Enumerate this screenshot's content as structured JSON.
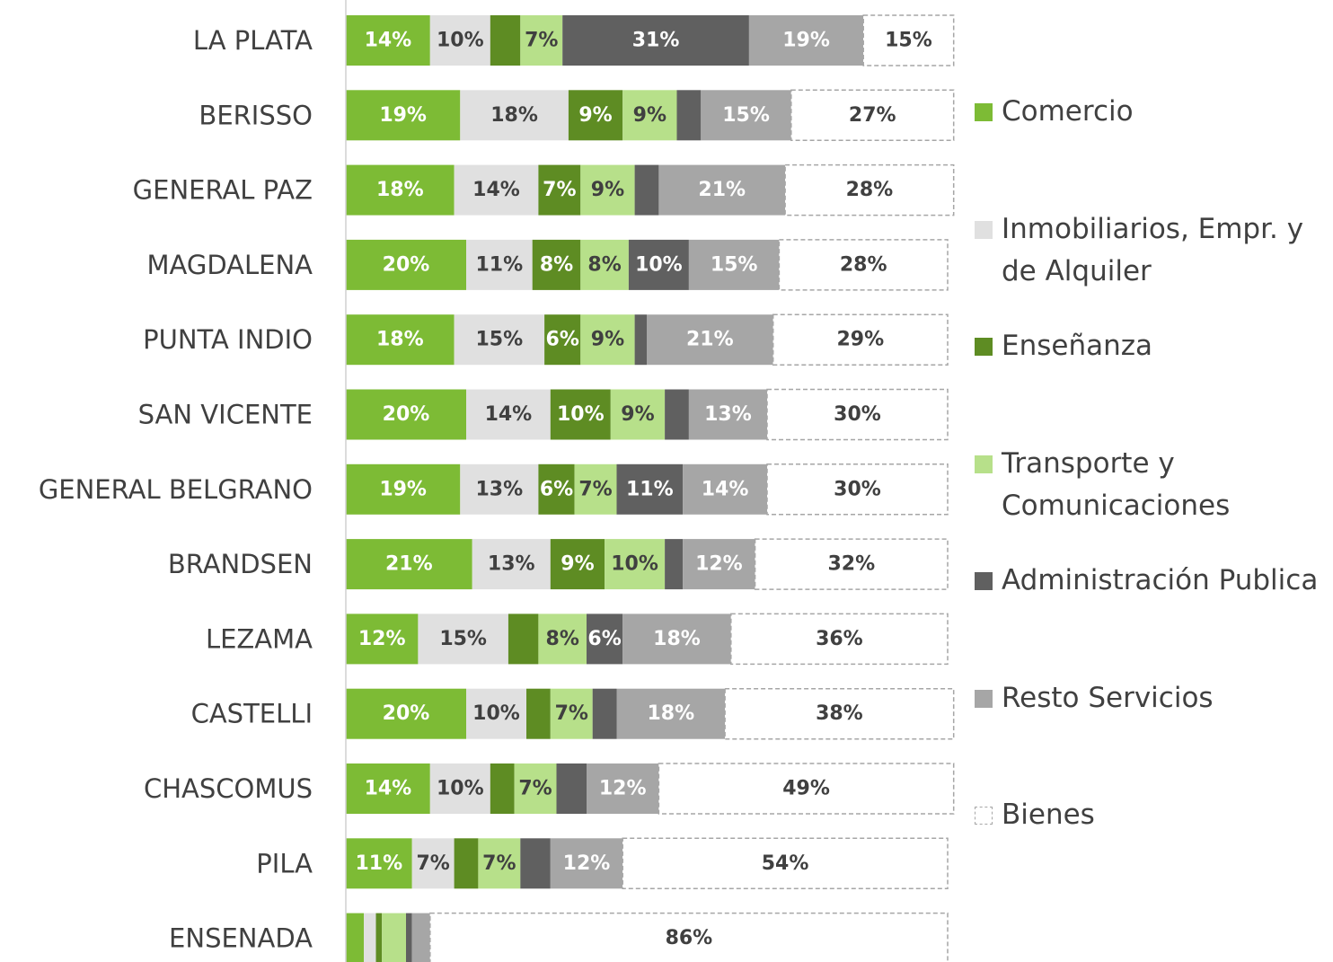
{
  "chart_data": {
    "type": "stacked_bar_horizontal_100",
    "categories": [
      "LA PLATA",
      "BERISSO",
      "GENERAL PAZ",
      "MAGDALENA",
      "PUNTA INDIO",
      "SAN VICENTE",
      "GENERAL BELGRANO",
      "BRANDSEN",
      "LEZAMA",
      "CASTELLI",
      "CHASCOMUS",
      "PILA",
      "ENSENADA"
    ],
    "xlim": [
      0,
      100
    ],
    "series": [
      {
        "name": "Comercio",
        "color": "#7dbb35",
        "label_color": "#ffffff",
        "values": [
          14,
          19,
          18,
          20,
          18,
          20,
          19,
          21,
          12,
          20,
          14,
          11,
          3
        ],
        "value_labels": [
          "14%",
          "19%",
          "18%",
          "20%",
          "18%",
          "20%",
          "19%",
          "21%",
          "12%",
          "20%",
          "14%",
          "11%",
          null
        ]
      },
      {
        "name": "Inmobiliarios, Empr. y de Alquiler",
        "color": "#e0e0e0",
        "label_color": "#404040",
        "values": [
          10,
          18,
          14,
          11,
          15,
          14,
          13,
          13,
          15,
          10,
          10,
          7,
          2
        ],
        "value_labels": [
          "10%",
          "18%",
          "14%",
          "11%",
          "15%",
          "14%",
          "13%",
          "13%",
          "15%",
          "10%",
          "10%",
          "7%",
          null
        ]
      },
      {
        "name": "Enseñanza",
        "color": "#5e8c23",
        "label_color": "#ffffff",
        "values": [
          5,
          9,
          7,
          8,
          6,
          10,
          6,
          9,
          5,
          4,
          4,
          4,
          1
        ],
        "value_labels": [
          null,
          "9%",
          "7%",
          "8%",
          "6%",
          "10%",
          "6%",
          "9%",
          null,
          null,
          null,
          null,
          null
        ]
      },
      {
        "name": "Transporte y Comunicaciones",
        "color": "#b7e08a",
        "label_color": "#404040",
        "values": [
          7,
          9,
          9,
          8,
          9,
          9,
          7,
          10,
          8,
          7,
          7,
          7,
          4
        ],
        "value_labels": [
          "7%",
          "9%",
          "9%",
          "8%",
          "9%",
          "9%",
          "7%",
          "10%",
          "8%",
          "7%",
          "7%",
          "7%",
          null
        ]
      },
      {
        "name": "Administración Publica",
        "color": "#606060",
        "label_color": "#ffffff",
        "values": [
          31,
          4,
          4,
          10,
          2,
          4,
          11,
          3,
          6,
          4,
          5,
          5,
          1
        ],
        "value_labels": [
          "31%",
          null,
          null,
          "10%",
          null,
          null,
          "11%",
          null,
          "6%",
          null,
          null,
          null,
          null
        ]
      },
      {
        "name": "Resto Servicios",
        "color": "#a6a6a6",
        "label_color": "#ffffff",
        "values": [
          19,
          15,
          21,
          15,
          21,
          13,
          14,
          12,
          18,
          18,
          12,
          12,
          3
        ],
        "value_labels": [
          "19%",
          "15%",
          "21%",
          "15%",
          "21%",
          "13%",
          "14%",
          "12%",
          "18%",
          "18%",
          "12%",
          "12%",
          null
        ]
      },
      {
        "name": "Bienes",
        "color": "#ffffff",
        "label_color": "#404040",
        "border": "dashed",
        "values": [
          15,
          27,
          28,
          28,
          29,
          30,
          30,
          32,
          36,
          38,
          49,
          54,
          86
        ],
        "value_labels": [
          "15%",
          "27%",
          "28%",
          "28%",
          "29%",
          "30%",
          "30%",
          "32%",
          "36%",
          "38%",
          "49%",
          "54%",
          "86%"
        ]
      }
    ]
  }
}
